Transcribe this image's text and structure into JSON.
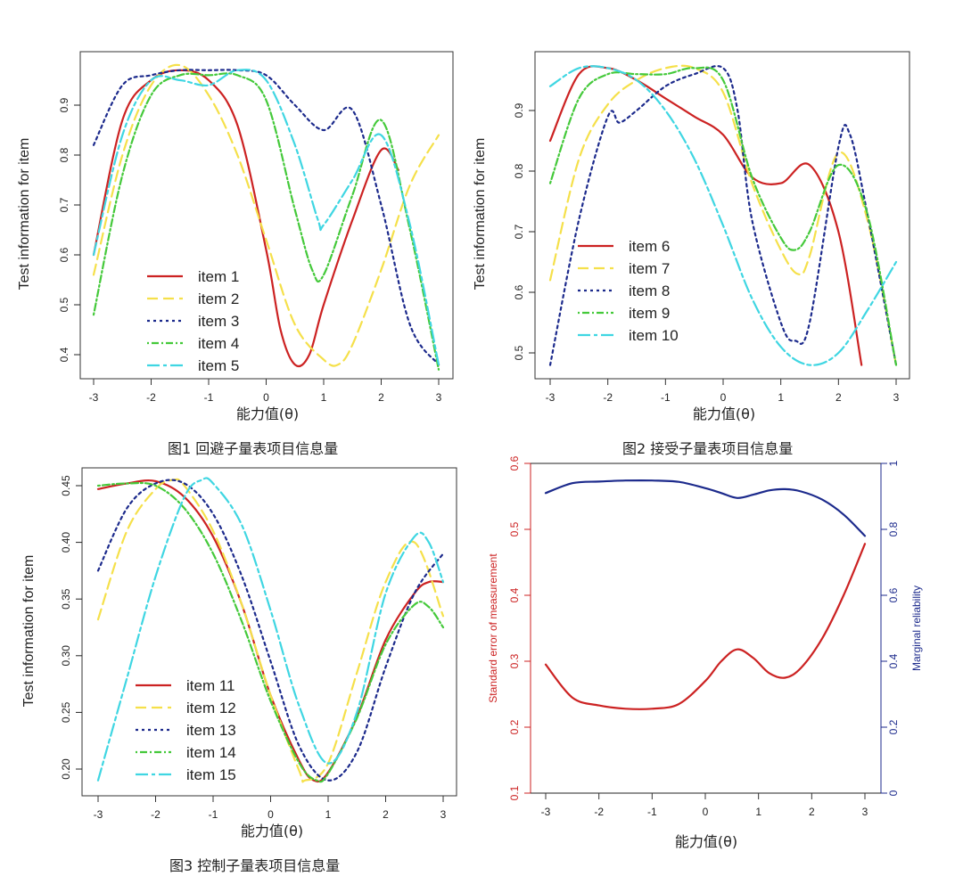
{
  "figure_captions": [
    "图1 回避子量表项目信息量",
    "图2 接受子量表项目信息量",
    "图3 控制子量表项目信息量"
  ],
  "chart_data": [
    {
      "id": "fig1",
      "type": "line",
      "xlabel": "能力值(θ)",
      "ylabel": "Test information for item",
      "xlim": [
        -3,
        3
      ],
      "ylim": [
        0.37,
        0.99
      ],
      "xticks": [
        "-3",
        "-2",
        "-1",
        "0",
        "1",
        "2",
        "3"
      ],
      "yticks": [
        "0.4",
        "0.5",
        "0.6",
        "0.7",
        "0.8",
        "0.9"
      ],
      "legend_position": "bottom-left",
      "series": [
        {
          "name": "item 1",
          "color": "#cc2222",
          "dash": "solid",
          "x": [
            -3,
            -2.5,
            -2,
            -1.5,
            -1,
            -0.5,
            0,
            0.25,
            0.5,
            0.75,
            1,
            1.5,
            2,
            2.3
          ],
          "y": [
            0.6,
            0.87,
            0.95,
            0.97,
            0.95,
            0.86,
            0.61,
            0.45,
            0.38,
            0.4,
            0.5,
            0.67,
            0.81,
            0.77
          ]
        },
        {
          "name": "item 2",
          "color": "#f5e04a",
          "dash": "longdash",
          "x": [
            -3,
            -2.5,
            -2,
            -1.5,
            -1,
            -0.5,
            0,
            0.5,
            1,
            1.25,
            1.5,
            2,
            2.5,
            3
          ],
          "y": [
            0.56,
            0.8,
            0.94,
            0.98,
            0.92,
            0.8,
            0.63,
            0.46,
            0.39,
            0.38,
            0.42,
            0.57,
            0.74,
            0.84
          ]
        },
        {
          "name": "item 3",
          "color": "#1c2a8c",
          "dash": "dotted",
          "x": [
            -3,
            -2.5,
            -2,
            -1.5,
            -1,
            -0.5,
            0,
            0.5,
            1,
            1.5,
            2,
            2.5,
            3
          ],
          "y": [
            0.82,
            0.94,
            0.96,
            0.97,
            0.97,
            0.97,
            0.96,
            0.9,
            0.85,
            0.89,
            0.7,
            0.46,
            0.38
          ]
        },
        {
          "name": "item 4",
          "color": "#44c93a",
          "dash": "dotdash",
          "x": [
            -3,
            -2.5,
            -2,
            -1.5,
            -1,
            -0.5,
            0,
            0.5,
            0.8,
            1,
            1.5,
            2,
            2.5,
            3
          ],
          "y": [
            0.48,
            0.76,
            0.92,
            0.96,
            0.96,
            0.96,
            0.91,
            0.69,
            0.57,
            0.56,
            0.72,
            0.87,
            0.65,
            0.37
          ]
        },
        {
          "name": "item 5",
          "color": "#3fd6e2",
          "dash": "twodash",
          "x": [
            -3,
            -2.5,
            -2,
            -1.5,
            -1,
            -0.5,
            0,
            0.5,
            0.9,
            1,
            1.5,
            2,
            2.5,
            3
          ],
          "y": [
            0.6,
            0.84,
            0.95,
            0.95,
            0.94,
            0.97,
            0.95,
            0.82,
            0.67,
            0.66,
            0.75,
            0.84,
            0.66,
            0.38
          ]
        }
      ]
    },
    {
      "id": "fig2",
      "type": "line",
      "xlabel": "能力值(θ)",
      "ylabel": "Test information for item",
      "xlim": [
        -3,
        3
      ],
      "ylim": [
        0.46,
        0.98
      ],
      "xticks": [
        "-3",
        "-2",
        "-1",
        "0",
        "1",
        "2",
        "3"
      ],
      "yticks": [
        "0.5",
        "0.6",
        "0.7",
        "0.8",
        "0.9"
      ],
      "legend_position": "bottom-left",
      "series": [
        {
          "name": "item 6",
          "color": "#cc2222",
          "dash": "solid",
          "x": [
            -3,
            -2.5,
            -2,
            -1.5,
            -1,
            -0.5,
            0,
            0.5,
            1,
            1.5,
            2,
            2.4
          ],
          "y": [
            0.85,
            0.96,
            0.97,
            0.95,
            0.92,
            0.89,
            0.86,
            0.79,
            0.78,
            0.81,
            0.7,
            0.48
          ]
        },
        {
          "name": "item 7",
          "color": "#f5e04a",
          "dash": "longdash",
          "x": [
            -3,
            -2.5,
            -2,
            -1.5,
            -1,
            -0.5,
            0,
            0.5,
            1,
            1.3,
            1.5,
            2,
            2.5,
            3
          ],
          "y": [
            0.62,
            0.82,
            0.91,
            0.95,
            0.97,
            0.97,
            0.93,
            0.78,
            0.67,
            0.63,
            0.66,
            0.83,
            0.72,
            0.48
          ]
        },
        {
          "name": "item 8",
          "color": "#1c2a8c",
          "dash": "dotted",
          "x": [
            -3,
            -2.5,
            -2,
            -1.8,
            -1.5,
            -1,
            -0.5,
            0,
            0.25,
            0.5,
            1,
            1.25,
            1.5,
            2,
            2.2,
            2.5,
            3
          ],
          "y": [
            0.48,
            0.72,
            0.89,
            0.88,
            0.9,
            0.94,
            0.96,
            0.97,
            0.9,
            0.72,
            0.55,
            0.52,
            0.55,
            0.84,
            0.86,
            0.73,
            0.48
          ]
        },
        {
          "name": "item 9",
          "color": "#44c93a",
          "dash": "dotdash",
          "x": [
            -3,
            -2.5,
            -2,
            -1.5,
            -1,
            -0.5,
            0,
            0.5,
            1,
            1.25,
            1.5,
            2,
            2.5,
            3
          ],
          "y": [
            0.78,
            0.92,
            0.96,
            0.96,
            0.96,
            0.97,
            0.95,
            0.79,
            0.69,
            0.67,
            0.7,
            0.81,
            0.73,
            0.48
          ]
        },
        {
          "name": "item 10",
          "color": "#3fd6e2",
          "dash": "twodash",
          "x": [
            -3,
            -2.5,
            -2,
            -1.5,
            -1,
            -0.5,
            0,
            0.5,
            1,
            1.5,
            2,
            2.5,
            3
          ],
          "y": [
            0.94,
            0.97,
            0.97,
            0.95,
            0.9,
            0.82,
            0.71,
            0.59,
            0.51,
            0.48,
            0.5,
            0.57,
            0.65
          ]
        }
      ]
    },
    {
      "id": "fig3",
      "type": "line",
      "xlabel": "能力值(θ)",
      "ylabel": "Test information for item",
      "xlim": [
        -3,
        3
      ],
      "ylim": [
        0.18,
        0.465
      ],
      "xticks": [
        "-3",
        "-2",
        "-1",
        "0",
        "1",
        "2",
        "3"
      ],
      "yticks": [
        "0.20",
        "0.25",
        "0.30",
        "0.35",
        "0.40",
        "0.45"
      ],
      "legend_position": "bottom-left",
      "series": [
        {
          "name": "item 11",
          "color": "#cc2222",
          "dash": "solid",
          "x": [
            -3,
            -2.5,
            -2,
            -1.5,
            -1,
            -0.5,
            0,
            0.5,
            0.75,
            1,
            1.5,
            2,
            2.5,
            2.75,
            3
          ],
          "y": [
            0.447,
            0.452,
            0.454,
            0.44,
            0.405,
            0.345,
            0.265,
            0.207,
            0.19,
            0.197,
            0.246,
            0.314,
            0.355,
            0.365,
            0.365
          ]
        },
        {
          "name": "item 12",
          "color": "#f5e04a",
          "dash": "longdash",
          "x": [
            -3,
            -2.5,
            -2,
            -1.7,
            -1.5,
            -1,
            -0.5,
            0,
            0.5,
            0.6,
            1,
            1.5,
            2,
            2.5,
            3
          ],
          "y": [
            0.332,
            0.41,
            0.447,
            0.455,
            0.45,
            0.41,
            0.345,
            0.265,
            0.198,
            0.19,
            0.205,
            0.285,
            0.365,
            0.4,
            0.335
          ]
        },
        {
          "name": "item 13",
          "color": "#1c2a8c",
          "dash": "dotted",
          "x": [
            -3,
            -2.5,
            -2,
            -1.5,
            -1,
            -0.5,
            0,
            0.5,
            1,
            1.5,
            2,
            2.5,
            3
          ],
          "y": [
            0.375,
            0.43,
            0.452,
            0.452,
            0.425,
            0.37,
            0.295,
            0.22,
            0.19,
            0.215,
            0.29,
            0.355,
            0.39
          ]
        },
        {
          "name": "item 14",
          "color": "#44c93a",
          "dash": "dotdash",
          "x": [
            -3,
            -2.5,
            -2,
            -1.5,
            -1,
            -0.5,
            0,
            0.5,
            0.8,
            1,
            1.5,
            2,
            2.5,
            2.75,
            3
          ],
          "y": [
            0.45,
            0.452,
            0.45,
            0.43,
            0.39,
            0.33,
            0.26,
            0.205,
            0.19,
            0.196,
            0.245,
            0.31,
            0.345,
            0.343,
            0.325
          ]
        },
        {
          "name": "item 15",
          "color": "#3fd6e2",
          "dash": "twodash",
          "x": [
            -3,
            -2.5,
            -2,
            -1.5,
            -1.2,
            -1,
            -0.5,
            0,
            0.5,
            1,
            1.5,
            2,
            2.5,
            2.75,
            3
          ],
          "y": [
            0.19,
            0.28,
            0.37,
            0.44,
            0.455,
            0.452,
            0.415,
            0.34,
            0.255,
            0.205,
            0.25,
            0.355,
            0.405,
            0.4,
            0.365
          ]
        }
      ]
    },
    {
      "id": "fig4",
      "type": "line",
      "xlabel": "能力值(θ)",
      "ylabel": "Standard error of measurement",
      "ylabel_right": "Marginal reliability",
      "xlim": [
        -3,
        3
      ],
      "ylim": [
        0.1,
        0.6
      ],
      "ylim_right": [
        0,
        1
      ],
      "xticks": [
        "-3",
        "-2",
        "-1",
        "0",
        "1",
        "2",
        "3"
      ],
      "yticks": [
        "0.1",
        "0.2",
        "0.3",
        "0.4",
        "0.5",
        "0.6"
      ],
      "yticks_right": [
        "0",
        "0.2",
        "0.4",
        "0.6",
        "0.8",
        "1"
      ],
      "series": [
        {
          "name": "Standard error of measurement",
          "color": "#cc2222",
          "axis": "left",
          "x": [
            -3,
            -2.5,
            -2,
            -1.5,
            -1,
            -0.5,
            0,
            0.3,
            0.6,
            0.9,
            1.2,
            1.5,
            1.8,
            2.2,
            2.6,
            3
          ],
          "y": [
            0.295,
            0.245,
            0.233,
            0.228,
            0.228,
            0.235,
            0.27,
            0.3,
            0.318,
            0.305,
            0.282,
            0.275,
            0.29,
            0.335,
            0.4,
            0.478
          ]
        },
        {
          "name": "Marginal reliability",
          "color": "#1c2a8c",
          "axis": "right",
          "x": [
            -3,
            -2.5,
            -2,
            -1.5,
            -1,
            -0.5,
            0,
            0.3,
            0.6,
            0.9,
            1.2,
            1.5,
            1.8,
            2.2,
            2.6,
            3
          ],
          "y": [
            0.91,
            0.94,
            0.945,
            0.948,
            0.948,
            0.944,
            0.925,
            0.91,
            0.895,
            0.905,
            0.918,
            0.922,
            0.915,
            0.89,
            0.845,
            0.78
          ]
        }
      ]
    }
  ]
}
